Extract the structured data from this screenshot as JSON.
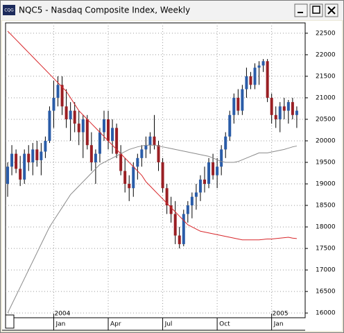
{
  "window": {
    "title": "NQC5 - Nasdaq Composite Index, Weekly",
    "icon_text": "CQG"
  },
  "chart_data": {
    "type": "candlestick",
    "ylim": [
      15890,
      22740
    ],
    "yticks": [
      16000,
      16500,
      17000,
      17500,
      18000,
      18500,
      19000,
      19500,
      20000,
      20500,
      21000,
      21500,
      22000,
      22500
    ],
    "xlim": [
      -0.5,
      71
    ],
    "xticks": [
      {
        "value": 11,
        "label": "Jan"
      },
      {
        "value": 24,
        "label": "Apr"
      },
      {
        "value": 37,
        "label": "Jul"
      },
      {
        "value": 50,
        "label": "Oct"
      },
      {
        "value": 63,
        "label": "Jan"
      }
    ],
    "year_ticks": [
      {
        "value": 11,
        "label": "2004"
      },
      {
        "value": 63,
        "label": "2005"
      }
    ],
    "grid": true,
    "up_color": "#2a5ca8",
    "down_color": "#9a1f24",
    "open": [
      19000,
      19400,
      19700,
      19350,
      19100,
      19700,
      19500,
      19800,
      19550,
      19750,
      20000,
      20700,
      21000,
      21300,
      20800,
      20500,
      20700,
      20400,
      20200,
      20500,
      19900,
      19500,
      19700,
      20200,
      20500,
      20000,
      20300,
      19700,
      19300,
      19000,
      18900,
      19400,
      19600,
      19800,
      19900,
      20100,
      19900,
      19500,
      18900,
      18500,
      18300,
      17800,
      17600,
      18300,
      18500,
      18700,
      18800,
      19100,
      19000,
      19500,
      19200,
      19400,
      19800,
      20100,
      20600,
      21000,
      20700,
      21200,
      21500,
      21300,
      21700,
      21750,
      21850,
      21000,
      20600,
      20500,
      20800,
      20700,
      20900,
      20600
    ],
    "high": [
      19500,
      19900,
      19800,
      19650,
      19800,
      19900,
      19950,
      20000,
      19950,
      20100,
      20800,
      21400,
      21500,
      21500,
      21200,
      20900,
      20900,
      20700,
      20600,
      20600,
      20200,
      19800,
      20300,
      20700,
      20700,
      20500,
      20400,
      19900,
      19600,
      19200,
      19500,
      19700,
      19900,
      20100,
      20200,
      20600,
      20000,
      19600,
      19000,
      18700,
      18600,
      18000,
      18400,
      18600,
      18800,
      19000,
      19200,
      19400,
      19600,
      19700,
      19600,
      19900,
      20200,
      20700,
      21100,
      21200,
      21300,
      21700,
      21600,
      21800,
      21850,
      21900,
      21900,
      21100,
      20800,
      20900,
      21000,
      20950,
      21000,
      20800
    ],
    "low": [
      18700,
      19200,
      19250,
      18950,
      19000,
      19300,
      19200,
      19400,
      19200,
      19600,
      19950,
      20300,
      20800,
      20600,
      20300,
      20000,
      20200,
      19900,
      19600,
      19800,
      19300,
      19000,
      19500,
      20000,
      19800,
      19700,
      19600,
      19200,
      18800,
      18600,
      18700,
      19100,
      19400,
      19600,
      19700,
      19800,
      19300,
      18800,
      18300,
      18100,
      17600,
      17500,
      17550,
      18100,
      18200,
      18400,
      18600,
      18800,
      18900,
      19100,
      18900,
      19200,
      19600,
      20000,
      20400,
      20600,
      20600,
      21000,
      21200,
      21200,
      21300,
      21600,
      20900,
      20400,
      20300,
      20200,
      20500,
      20400,
      20500,
      20300
    ],
    "close": [
      19400,
      19700,
      19350,
      19100,
      19700,
      19500,
      19800,
      19550,
      19750,
      20000,
      20700,
      21000,
      21300,
      20800,
      20500,
      20700,
      20400,
      20200,
      20500,
      19900,
      19500,
      19700,
      20200,
      20500,
      20000,
      20300,
      19700,
      19300,
      19000,
      18900,
      19400,
      19600,
      19800,
      19900,
      20100,
      19900,
      19500,
      18900,
      18500,
      18300,
      17800,
      17600,
      18300,
      18500,
      18700,
      18800,
      19100,
      19000,
      19500,
      19200,
      19400,
      19800,
      20100,
      20600,
      21000,
      20700,
      21200,
      21500,
      21300,
      21700,
      21750,
      21850,
      21000,
      20600,
      20500,
      20800,
      20700,
      20900,
      20600,
      20700
    ],
    "lines": [
      {
        "color": "#d8262a",
        "values": [
          22550,
          22450,
          22350,
          22250,
          22150,
          22050,
          21950,
          21850,
          21750,
          21650,
          21550,
          21450,
          21350,
          21250,
          21150,
          21000,
          20850,
          20700,
          20600,
          20500,
          20400,
          20300,
          20200,
          20100,
          20000,
          19900,
          19800,
          19700,
          19600,
          19500,
          19400,
          19300,
          19200,
          19050,
          18950,
          18850,
          18750,
          18650,
          18550,
          18450,
          18350,
          18250,
          18150,
          18050,
          18000,
          17950,
          17900,
          17880,
          17860,
          17840,
          17820,
          17800,
          17780,
          17760,
          17740,
          17720,
          17700,
          17700,
          17700,
          17700,
          17700,
          17710,
          17720,
          17720,
          17730,
          17740,
          17750,
          17760,
          17740,
          17730
        ]
      },
      {
        "color": "#8a8a8a",
        "values": [
          16000,
          16200,
          16400,
          16600,
          16800,
          17000,
          17200,
          17400,
          17600,
          17800,
          18000,
          18150,
          18300,
          18450,
          18600,
          18750,
          18850,
          18950,
          19050,
          19150,
          19250,
          19350,
          19450,
          19500,
          19550,
          19600,
          19650,
          19700,
          19750,
          19800,
          19830,
          19860,
          19880,
          19900,
          19900,
          19900,
          19880,
          19860,
          19840,
          19820,
          19800,
          19780,
          19760,
          19740,
          19720,
          19700,
          19680,
          19660,
          19640,
          19600,
          19560,
          19520,
          19500,
          19500,
          19500,
          19520,
          19560,
          19600,
          19640,
          19680,
          19720,
          19720,
          19720,
          19740,
          19760,
          19780,
          19800,
          19830,
          19860,
          19880
        ]
      }
    ]
  }
}
